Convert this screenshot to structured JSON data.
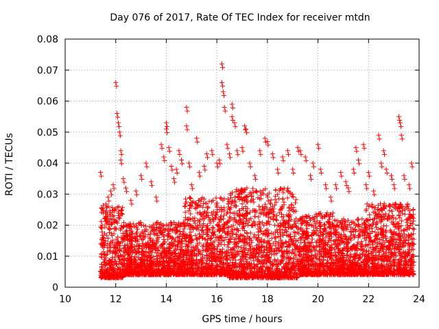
{
  "chart_data": {
    "type": "scatter",
    "title": "Day 076 of 2017, Rate Of TEC Index for receiver mtdn",
    "xlabel": "GPS time / hours",
    "ylabel": "ROTI / TECUs",
    "xlim": [
      10,
      24
    ],
    "ylim": [
      0,
      0.08
    ],
    "xticks": [
      "10",
      "12",
      "14",
      "16",
      "18",
      "20",
      "22",
      "24"
    ],
    "yticks": [
      "0",
      "0.01",
      "0.02",
      "0.03",
      "0.04",
      "0.05",
      "0.06",
      "0.07",
      "0.08"
    ],
    "grid": true,
    "marker": "+",
    "color": "#ff0000",
    "series": [
      {
        "name": "ROTI",
        "points": [
          [
            11.4,
            0.037
          ],
          [
            11.5,
            0.014
          ],
          [
            11.6,
            0.024
          ],
          [
            11.7,
            0.029
          ],
          [
            11.8,
            0.031
          ],
          [
            11.9,
            0.033
          ],
          [
            12.0,
            0.066
          ],
          [
            12.05,
            0.056
          ],
          [
            12.1,
            0.053
          ],
          [
            12.15,
            0.05
          ],
          [
            12.2,
            0.044
          ],
          [
            12.2,
            0.041
          ],
          [
            12.3,
            0.035
          ],
          [
            12.4,
            0.032
          ],
          [
            12.6,
            0.028
          ],
          [
            12.8,
            0.031
          ],
          [
            13.0,
            0.036
          ],
          [
            13.2,
            0.04
          ],
          [
            13.4,
            0.034
          ],
          [
            13.6,
            0.029
          ],
          [
            13.8,
            0.046
          ],
          [
            13.9,
            0.042
          ],
          [
            14.0,
            0.053
          ],
          [
            14.0,
            0.051
          ],
          [
            14.1,
            0.045
          ],
          [
            14.2,
            0.039
          ],
          [
            14.3,
            0.035
          ],
          [
            14.4,
            0.038
          ],
          [
            14.5,
            0.044
          ],
          [
            14.6,
            0.041
          ],
          [
            14.8,
            0.058
          ],
          [
            14.8,
            0.052
          ],
          [
            14.9,
            0.04
          ],
          [
            15.0,
            0.033
          ],
          [
            15.2,
            0.048
          ],
          [
            15.3,
            0.037
          ],
          [
            15.5,
            0.039
          ],
          [
            15.6,
            0.043
          ],
          [
            15.8,
            0.044
          ],
          [
            16.0,
            0.04
          ],
          [
            16.1,
            0.041
          ],
          [
            16.2,
            0.072
          ],
          [
            16.2,
            0.066
          ],
          [
            16.25,
            0.063
          ],
          [
            16.3,
            0.058
          ],
          [
            16.4,
            0.046
          ],
          [
            16.5,
            0.043
          ],
          [
            16.6,
            0.059
          ],
          [
            16.6,
            0.055
          ],
          [
            16.7,
            0.053
          ],
          [
            16.8,
            0.044
          ],
          [
            17.0,
            0.045
          ],
          [
            17.1,
            0.052
          ],
          [
            17.15,
            0.051
          ],
          [
            17.3,
            0.04
          ],
          [
            17.5,
            0.036
          ],
          [
            17.7,
            0.044
          ],
          [
            17.9,
            0.048
          ],
          [
            18.0,
            0.047
          ],
          [
            18.2,
            0.043
          ],
          [
            18.4,
            0.038
          ],
          [
            18.6,
            0.042
          ],
          [
            18.8,
            0.044
          ],
          [
            19.0,
            0.038
          ],
          [
            19.2,
            0.045
          ],
          [
            19.3,
            0.044
          ],
          [
            19.5,
            0.042
          ],
          [
            19.7,
            0.036
          ],
          [
            19.8,
            0.04
          ],
          [
            20.0,
            0.046
          ],
          [
            20.1,
            0.038
          ],
          [
            20.3,
            0.033
          ],
          [
            20.5,
            0.029
          ],
          [
            20.7,
            0.033
          ],
          [
            20.9,
            0.037
          ],
          [
            21.1,
            0.034
          ],
          [
            21.2,
            0.032
          ],
          [
            21.4,
            0.038
          ],
          [
            21.5,
            0.045
          ],
          [
            21.6,
            0.041
          ],
          [
            21.8,
            0.046
          ],
          [
            21.9,
            0.033
          ],
          [
            22.0,
            0.037
          ],
          [
            22.2,
            0.031
          ],
          [
            22.4,
            0.049
          ],
          [
            22.5,
            0.04
          ],
          [
            22.6,
            0.044
          ],
          [
            22.7,
            0.038
          ],
          [
            22.9,
            0.036
          ],
          [
            23.0,
            0.033
          ],
          [
            23.2,
            0.055
          ],
          [
            23.25,
            0.053
          ],
          [
            23.3,
            0.049
          ],
          [
            23.4,
            0.036
          ],
          [
            23.6,
            0.033
          ],
          [
            23.7,
            0.04
          ]
        ]
      }
    ],
    "bands": [
      {
        "x_range": [
          11.4,
          12.3
        ],
        "y_range": [
          0.003,
          0.027
        ]
      },
      {
        "x_range": [
          12.3,
          14.7
        ],
        "y_range": [
          0.004,
          0.021
        ]
      },
      {
        "x_range": [
          14.7,
          16.5
        ],
        "y_range": [
          0.004,
          0.029
        ]
      },
      {
        "x_range": [
          16.5,
          19.2
        ],
        "y_range": [
          0.003,
          0.032
        ]
      },
      {
        "x_range": [
          19.2,
          20.6
        ],
        "y_range": [
          0.004,
          0.024
        ]
      },
      {
        "x_range": [
          20.6,
          21.9
        ],
        "y_range": [
          0.004,
          0.022
        ]
      },
      {
        "x_range": [
          21.9,
          23.8
        ],
        "y_range": [
          0.004,
          0.027
        ]
      }
    ]
  }
}
